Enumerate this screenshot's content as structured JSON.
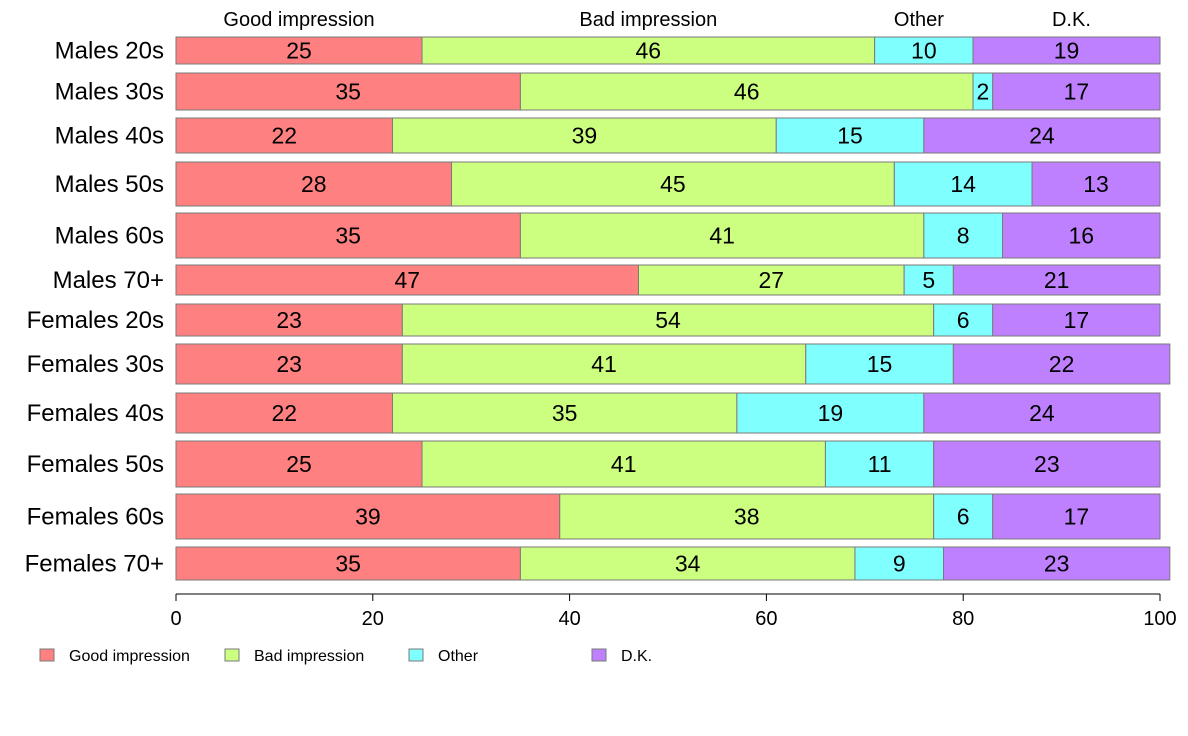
{
  "chart_data": {
    "type": "bar",
    "orientation": "horizontal",
    "stacked": true,
    "categories": [
      "Males 20s",
      "Males 30s",
      "Males 40s",
      "Males 50s",
      "Males 60s",
      "Males 70+",
      "Females 20s",
      "Females 30s",
      "Females 40s",
      "Females 50s",
      "Females 60s",
      "Females 70+"
    ],
    "series": [
      {
        "name": "Good impression",
        "color": "#ff8080",
        "values": [
          25,
          35,
          22,
          28,
          35,
          47,
          23,
          23,
          22,
          25,
          39,
          35
        ]
      },
      {
        "name": "Bad impression",
        "color": "#ccff80",
        "values": [
          46,
          46,
          39,
          45,
          41,
          27,
          54,
          41,
          35,
          41,
          38,
          34
        ]
      },
      {
        "name": "Other",
        "color": "#80ffff",
        "values": [
          10,
          2,
          15,
          14,
          8,
          5,
          6,
          15,
          19,
          11,
          6,
          9
        ]
      },
      {
        "name": "D.K.",
        "color": "#bf80ff",
        "values": [
          19,
          17,
          24,
          13,
          16,
          21,
          17,
          22,
          24,
          23,
          17,
          23
        ]
      }
    ],
    "series_positions_in_top_labels": [
      12.5,
      48,
      75.5,
      91
    ],
    "xlim": [
      0,
      100
    ],
    "xticks": [
      0,
      20,
      40,
      60,
      80,
      100
    ],
    "grid": false,
    "legend_position": "bottom-left"
  }
}
